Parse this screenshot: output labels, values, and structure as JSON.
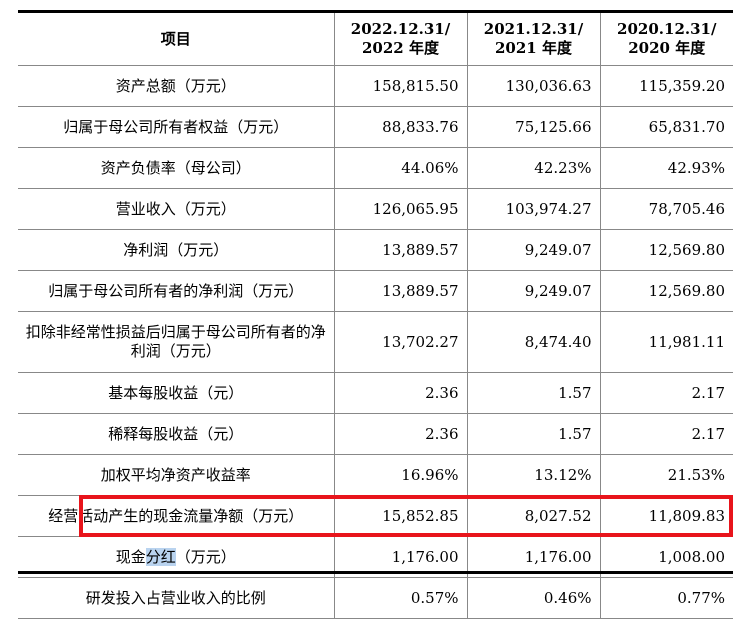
{
  "table": {
    "headers": [
      {
        "line1": "项目",
        "line2": ""
      },
      {
        "line1": "2022.12.31/",
        "line2": "2022 年度"
      },
      {
        "line1": "2021.12.31/",
        "line2": "2021 年度"
      },
      {
        "line1": "2020.12.31/",
        "line2": "2020 年度"
      }
    ],
    "rows": [
      {
        "label": "资产总额（万元）",
        "v2022": "158,815.50",
        "v2021": "130,036.63",
        "v2020": "115,359.20"
      },
      {
        "label": "归属于母公司所有者权益（万元）",
        "v2022": "88,833.76",
        "v2021": "75,125.66",
        "v2020": "65,831.70"
      },
      {
        "label": "资产负债率（母公司）",
        "v2022": "44.06%",
        "v2021": "42.23%",
        "v2020": "42.93%"
      },
      {
        "label": "营业收入（万元）",
        "v2022": "126,065.95",
        "v2021": "103,974.27",
        "v2020": "78,705.46"
      },
      {
        "label": "净利润（万元）",
        "v2022": "13,889.57",
        "v2021": "9,249.07",
        "v2020": "12,569.80"
      },
      {
        "label": "归属于母公司所有者的净利润（万元）",
        "v2022": "13,889.57",
        "v2021": "9,249.07",
        "v2020": "12,569.80"
      },
      {
        "label": "扣除非经常性损益后归属于母公司所有者的净利润（万元）",
        "v2022": "13,702.27",
        "v2021": "8,474.40",
        "v2020": "11,981.11"
      },
      {
        "label": "基本每股收益（元）",
        "v2022": "2.36",
        "v2021": "1.57",
        "v2020": "2.17"
      },
      {
        "label": "稀释每股收益（元）",
        "v2022": "2.36",
        "v2021": "1.57",
        "v2020": "2.17"
      },
      {
        "label": "加权平均净资产收益率",
        "v2022": "16.96%",
        "v2021": "13.12%",
        "v2020": "21.53%"
      },
      {
        "label": "经营活动产生的现金流量净额（万元）",
        "v2022": "15,852.85",
        "v2021": "8,027.52",
        "v2020": "11,809.83"
      },
      {
        "label_pre": "现金",
        "label_hl": "分红",
        "label_post": "（万元）",
        "v2022": "1,176.00",
        "v2021": "1,176.00",
        "v2020": "1,008.00"
      },
      {
        "label": "研发投入占营业收入的比例",
        "v2022": "0.57%",
        "v2021": "0.46%",
        "v2020": "0.77%"
      }
    ]
  },
  "highlight": {
    "border_color": "#e8141b",
    "text_highlight_color": "#b9d3ef"
  }
}
